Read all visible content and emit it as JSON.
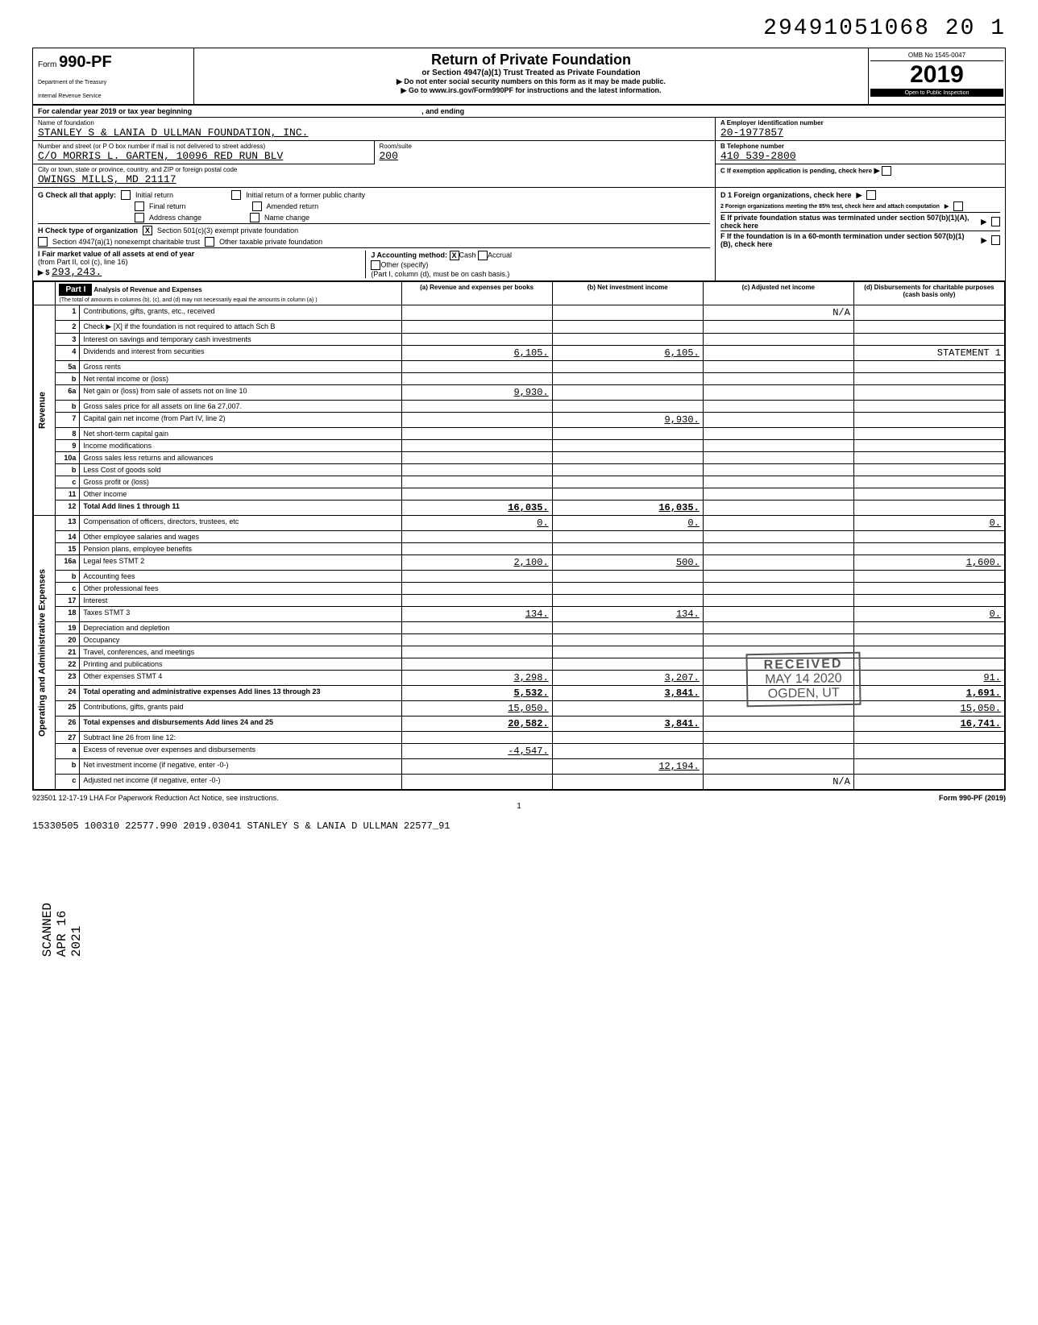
{
  "top_dln": "29491051068 20  1",
  "form": {
    "prefix": "Form",
    "number": "990-PF",
    "dept1": "Department of the Treasury",
    "dept2": "Internal Revenue Service"
  },
  "header": {
    "title": "Return of Private Foundation",
    "subtitle": "or Section 4947(a)(1) Trust Treated as Private Foundation",
    "instr1": "▶ Do not enter social security numbers on this form as it may be made public.",
    "instr2": "▶ Go to www.irs.gov/Form990PF for instructions and the latest information.",
    "omb": "OMB No 1545-0047",
    "year": "2019",
    "opi": "Open to Public Inspection"
  },
  "calyear": {
    "label": "For calendar year 2019 or tax year beginning",
    "and_ending": ", and ending"
  },
  "foundation": {
    "name_label": "Name of foundation",
    "name": "STANLEY S & LANIA D ULLMAN FOUNDATION, INC.",
    "street_label": "Number and street (or P O  box number if mail is not delivered to street address)",
    "street": "C/O MORRIS L. GARTEN, 10096 RED RUN BLV",
    "room_label": "Room/suite",
    "room": "200",
    "city_label": "City or town, state or province, country, and ZIP or foreign postal code",
    "city": "OWINGS MILLS, MD  21117"
  },
  "boxA": {
    "label": "A  Employer identification number",
    "value": "20-1977857"
  },
  "boxB": {
    "label": "B  Telephone number",
    "value": "410 539-2800"
  },
  "boxC": {
    "label": "C  If exemption application is pending, check here"
  },
  "boxD1": {
    "label": "D 1  Foreign organizations, check here"
  },
  "boxD2": {
    "label": "2  Foreign organizations meeting the 85% test, check here and attach computation"
  },
  "boxE": {
    "label": "E  If private foundation status was terminated under section 507(b)(1)(A), check here"
  },
  "boxF": {
    "label": "F  If the foundation is in a 60-month termination under section 507(b)(1)(B), check here"
  },
  "boxG": {
    "label": "G  Check all that apply:",
    "opts": [
      "Initial return",
      "Final return",
      "Address change",
      "Initial return of a former public charity",
      "Amended return",
      "Name change"
    ]
  },
  "boxH": {
    "label": "H  Check type of organization",
    "opt1": "Section 501(c)(3) exempt private foundation",
    "opt2": "Section 4947(a)(1) nonexempt charitable trust",
    "opt3": "Other taxable private foundation"
  },
  "boxI": {
    "label": "I  Fair market value of all assets at end of year",
    "from": "(from Part II, col (c), line 16)",
    "value": "293,243.",
    "arrow": "▶ $"
  },
  "boxJ": {
    "label": "J  Accounting method:",
    "cash": "Cash",
    "accrual": "Accrual",
    "other": "Other (specify)",
    "note": "(Part I, column (d), must be on cash basis.)"
  },
  "part1": {
    "title": "Part I",
    "subtitle": "Analysis of Revenue and Expenses",
    "note": "(The total of amounts in columns (b), (c), and (d) may not necessarily equal the amounts in column (a) )",
    "colA": "(a) Revenue and expenses per books",
    "colB": "(b) Net investment income",
    "colC": "(c) Adjusted net income",
    "colD": "(d) Disbursements for charitable purposes (cash basis only)"
  },
  "revenue_label": "Revenue",
  "expenses_label": "Operating and Administrative Expenses",
  "rows": [
    {
      "n": "1",
      "d": "Contributions, gifts, grants, etc., received",
      "a": "",
      "b": "",
      "c": "N/A",
      "e": ""
    },
    {
      "n": "2",
      "d": "Check ▶ [X] if the foundation is not required to attach Sch B",
      "a": "",
      "b": "",
      "c": "",
      "e": ""
    },
    {
      "n": "3",
      "d": "Interest on savings and temporary cash investments",
      "a": "",
      "b": "",
      "c": "",
      "e": ""
    },
    {
      "n": "4",
      "d": "Dividends and interest from securities",
      "a": "6,105.",
      "b": "6,105.",
      "c": "",
      "e": "STATEMENT 1"
    },
    {
      "n": "5a",
      "d": "Gross rents",
      "a": "",
      "b": "",
      "c": "",
      "e": ""
    },
    {
      "n": "b",
      "d": "Net rental income or (loss)",
      "a": "",
      "b": "",
      "c": "",
      "e": ""
    },
    {
      "n": "6a",
      "d": "Net gain or (loss) from sale of assets not on line 10",
      "a": "9,930.",
      "b": "",
      "c": "",
      "e": ""
    },
    {
      "n": "b",
      "d": "Gross sales price for all assets on line 6a       27,007.",
      "a": "",
      "b": "",
      "c": "",
      "e": ""
    },
    {
      "n": "7",
      "d": "Capital gain net income (from Part IV, line 2)",
      "a": "",
      "b": "9,930.",
      "c": "",
      "e": ""
    },
    {
      "n": "8",
      "d": "Net short-term capital gain",
      "a": "",
      "b": "",
      "c": "",
      "e": ""
    },
    {
      "n": "9",
      "d": "Income modifications",
      "a": "",
      "b": "",
      "c": "",
      "e": ""
    },
    {
      "n": "10a",
      "d": "Gross sales less returns and allowances",
      "a": "",
      "b": "",
      "c": "",
      "e": ""
    },
    {
      "n": "b",
      "d": "Less Cost of goods sold",
      "a": "",
      "b": "",
      "c": "",
      "e": ""
    },
    {
      "n": "c",
      "d": "Gross profit or (loss)",
      "a": "",
      "b": "",
      "c": "",
      "e": ""
    },
    {
      "n": "11",
      "d": "Other income",
      "a": "",
      "b": "",
      "c": "",
      "e": ""
    },
    {
      "n": "12",
      "d": "Total  Add lines 1 through 11",
      "a": "16,035.",
      "b": "16,035.",
      "c": "",
      "e": "",
      "bold": true
    },
    {
      "n": "13",
      "d": "Compensation of officers, directors, trustees, etc",
      "a": "0.",
      "b": "0.",
      "c": "",
      "e": "0."
    },
    {
      "n": "14",
      "d": "Other employee salaries and wages",
      "a": "",
      "b": "",
      "c": "",
      "e": ""
    },
    {
      "n": "15",
      "d": "Pension plans, employee benefits",
      "a": "",
      "b": "",
      "c": "",
      "e": ""
    },
    {
      "n": "16a",
      "d": "Legal fees                 STMT 2",
      "a": "2,100.",
      "b": "500.",
      "c": "",
      "e": "1,600."
    },
    {
      "n": "b",
      "d": "Accounting fees",
      "a": "",
      "b": "",
      "c": "",
      "e": ""
    },
    {
      "n": "c",
      "d": "Other professional fees",
      "a": "",
      "b": "",
      "c": "",
      "e": ""
    },
    {
      "n": "17",
      "d": "Interest",
      "a": "",
      "b": "",
      "c": "",
      "e": ""
    },
    {
      "n": "18",
      "d": "Taxes                      STMT 3",
      "a": "134.",
      "b": "134.",
      "c": "",
      "e": "0."
    },
    {
      "n": "19",
      "d": "Depreciation and depletion",
      "a": "",
      "b": "",
      "c": "",
      "e": ""
    },
    {
      "n": "20",
      "d": "Occupancy",
      "a": "",
      "b": "",
      "c": "",
      "e": ""
    },
    {
      "n": "21",
      "d": "Travel, conferences, and meetings",
      "a": "",
      "b": "",
      "c": "",
      "e": ""
    },
    {
      "n": "22",
      "d": "Printing and publications",
      "a": "",
      "b": "",
      "c": "",
      "e": ""
    },
    {
      "n": "23",
      "d": "Other expenses             STMT 4",
      "a": "3,298.",
      "b": "3,207.",
      "c": "",
      "e": "91."
    },
    {
      "n": "24",
      "d": "Total operating and administrative expenses  Add lines 13 through 23",
      "a": "5,532.",
      "b": "3,841.",
      "c": "",
      "e": "1,691.",
      "bold": true
    },
    {
      "n": "25",
      "d": "Contributions, gifts, grants paid",
      "a": "15,050.",
      "b": "",
      "c": "",
      "e": "15,050."
    },
    {
      "n": "26",
      "d": "Total expenses and disbursements Add lines 24 and 25",
      "a": "20,582.",
      "b": "3,841.",
      "c": "",
      "e": "16,741.",
      "bold": true
    },
    {
      "n": "27",
      "d": "Subtract line 26 from line 12:",
      "a": "",
      "b": "",
      "c": "",
      "e": ""
    },
    {
      "n": "a",
      "d": "Excess of revenue over expenses and disbursements",
      "a": "-4,547.",
      "b": "",
      "c": "",
      "e": ""
    },
    {
      "n": "b",
      "d": "Net investment income (if negative, enter -0-)",
      "a": "",
      "b": "12,194.",
      "c": "",
      "e": ""
    },
    {
      "n": "c",
      "d": "Adjusted net income (if negative, enter -0-)",
      "a": "",
      "b": "",
      "c": "N/A",
      "e": ""
    }
  ],
  "stamp": {
    "received": "RECEIVED",
    "date": "MAY 14 2020",
    "loc": "OGDEN, UT"
  },
  "sidebar": "SCANNED APR 16 2021",
  "footer": {
    "left": "923501 12-17-19  LHA  For Paperwork Reduction Act Notice, see instructions.",
    "right": "Form 990-PF (2019)",
    "page": "1",
    "bottom": "15330505 100310 22577.990          2019.03041 STANLEY S & LANIA D ULLMAN  22577_91"
  }
}
